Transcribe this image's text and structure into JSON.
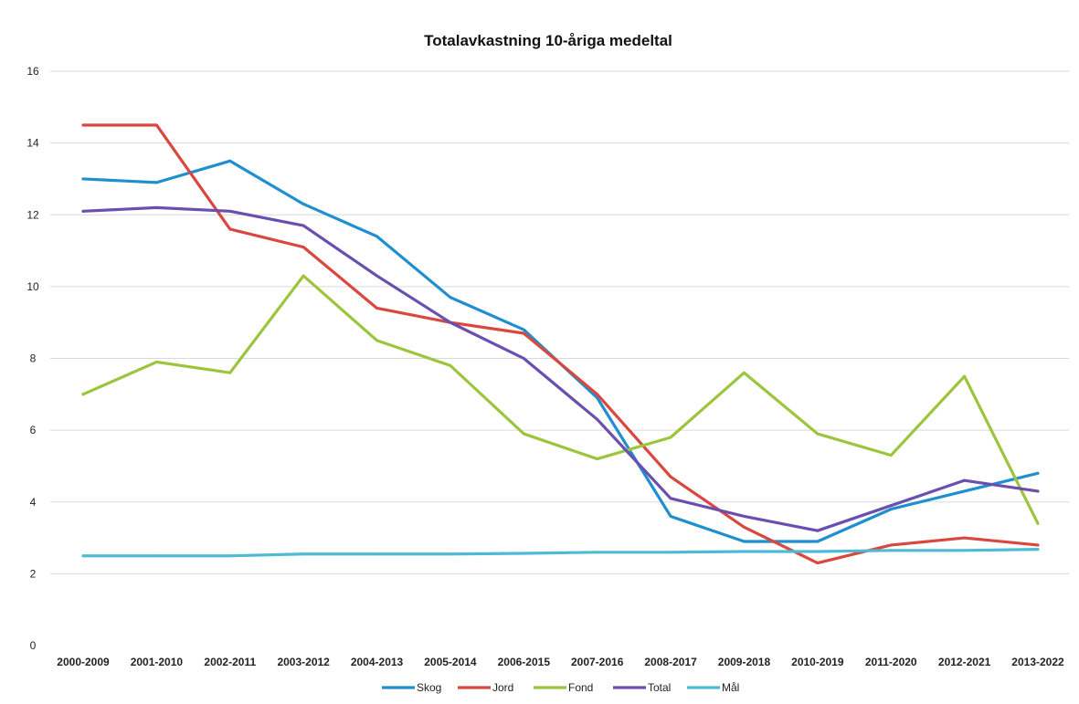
{
  "chart_data": {
    "type": "line",
    "title": "Totalavkastning 10-åriga medeltal",
    "xlabel": "",
    "ylabel": "",
    "ylim": [
      0,
      16
    ],
    "yticks": [
      0,
      2,
      4,
      6,
      8,
      10,
      12,
      14,
      16
    ],
    "grid": true,
    "legend_position": "bottom",
    "categories": [
      "2000-2009",
      "2001-2010",
      "2002-2011",
      "2003-2012",
      "2004-2013",
      "2005-2014",
      "2006-2015",
      "2007-2016",
      "2008-2017",
      "2009-2018",
      "2010-2019",
      "2011-2020",
      "2012-2021",
      "2013-2022"
    ],
    "series": [
      {
        "name": "Skog",
        "color": "#1f8fd0",
        "values": [
          13.0,
          12.9,
          13.5,
          12.3,
          11.4,
          9.7,
          8.8,
          6.9,
          3.6,
          2.9,
          2.9,
          3.8,
          4.3,
          4.8
        ]
      },
      {
        "name": "Jord",
        "color": "#d9473f",
        "values": [
          14.5,
          14.5,
          11.6,
          11.1,
          9.4,
          9.0,
          8.7,
          7.0,
          4.7,
          3.3,
          2.3,
          2.8,
          3.0,
          2.8
        ]
      },
      {
        "name": "Fond",
        "color": "#9bc53d",
        "values": [
          7.0,
          7.9,
          7.6,
          10.3,
          8.5,
          7.8,
          5.9,
          5.2,
          5.8,
          7.6,
          5.9,
          5.3,
          7.5,
          3.4
        ]
      },
      {
        "name": "Total",
        "color": "#6a4fb0",
        "values": [
          12.1,
          12.2,
          12.1,
          11.7,
          10.3,
          9.0,
          8.0,
          6.3,
          4.1,
          3.6,
          3.2,
          3.9,
          4.6,
          4.3
        ]
      },
      {
        "name": "Mål",
        "color": "#4fbad6",
        "values": [
          2.5,
          2.5,
          2.5,
          2.55,
          2.55,
          2.55,
          2.57,
          2.6,
          2.6,
          2.62,
          2.62,
          2.65,
          2.65,
          2.68
        ]
      }
    ]
  }
}
